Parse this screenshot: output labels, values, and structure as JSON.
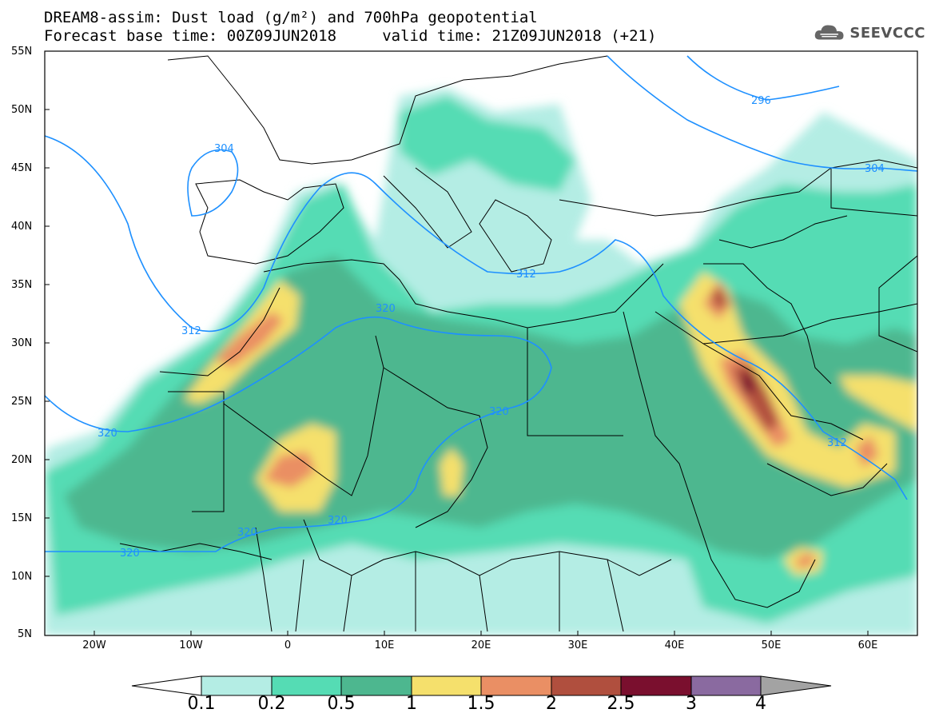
{
  "title_line1": "DREAM8-assim: Dust load (g/m²) and 700hPa geopotential",
  "title_line2": "Forecast base time: 00Z09JUN2018     valid time: 21Z09JUN2018 (+21)",
  "logo_text": "SEEVCCC",
  "logo_icon": "cloud-icon",
  "lat_labels": [
    "55N",
    "50N",
    "45N",
    "40N",
    "35N",
    "30N",
    "25N",
    "20N",
    "15N",
    "10N",
    "5N"
  ],
  "lon_labels": [
    "20W",
    "10W",
    "0",
    "10E",
    "20E",
    "30E",
    "40E",
    "50E",
    "60E"
  ],
  "contour_labels": [
    "304",
    "312",
    "320",
    "320",
    "320",
    "320",
    "320",
    "296",
    "304",
    "312",
    "312"
  ],
  "colorbar": {
    "thresholds": [
      "0.1",
      "0.2",
      "0.5",
      "1",
      "1.5",
      "2",
      "2.5",
      "3",
      "4"
    ],
    "colors": [
      "#ffffff",
      "#b4ede4",
      "#55dcb4",
      "#4db78f",
      "#f5e06c",
      "#ea8f64",
      "#b04f3e",
      "#7a0f2e",
      "#8a6aa0",
      "#a3a3a3"
    ]
  },
  "map_colors": {
    "land": "#ffffff",
    "border": "#000000",
    "contour": "#1e90ff"
  }
}
